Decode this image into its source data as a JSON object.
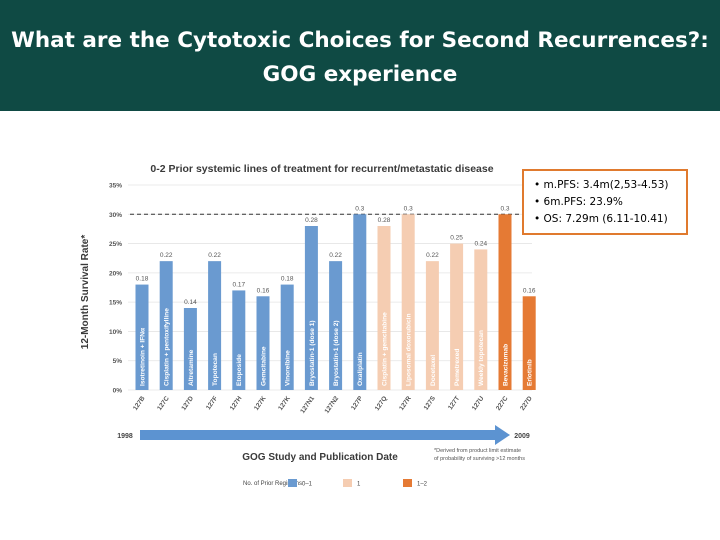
{
  "slide": {
    "title": "What are the Cytotoxic Choices  for Second Recurrences?:\nGOG experience"
  },
  "callout": {
    "lines": [
      "• m.PFS: 3.4m(2,53-4.53)",
      "• 6m.PFS: 23.9%",
      "• OS:  7.29m (6.11-10.41)"
    ]
  },
  "colors": {
    "banner": "#0f4a44",
    "regimen_0_1": "#6a9ad0",
    "regimen_1": "#f5cdb2",
    "regimen_1_2": "#e57a34",
    "timeline_arrow": "#5c93d1",
    "callout_border": "#e07a2e"
  },
  "chart_data": {
    "type": "bar",
    "title": "0-2 Prior systemic lines of treatment for recurrent/metastatic disease",
    "ylabel": "12-Month Survival Rate*",
    "xlabel": "GOG Study and Publication Date",
    "ylim": [
      0,
      0.35
    ],
    "yticks": [
      "0%",
      "5%",
      "10%",
      "15%",
      "20%",
      "25%",
      "30%",
      "35%"
    ],
    "reference_line": 0.3,
    "categories": [
      "127B",
      "127C",
      "127D",
      "127F",
      "127H",
      "127K",
      "127K",
      "127N1",
      "127N2",
      "127P",
      "127Q",
      "127R",
      "127S",
      "127T",
      "127U",
      "227C",
      "227D"
    ],
    "drugs": [
      "Isotretinoin + IFNα",
      "Cisplatin + pentoxifylline",
      "Altretamine",
      "Topotecan",
      "Etoposide",
      "Gemcitabine",
      "Vinorelbine",
      "Bryostatin-1 (dose 1)",
      "Bryostatin-1 (dose 2)",
      "Oxaliplatin",
      "Cisplatin + gemcitabine",
      "Liposomal doxorubicin",
      "Docetaxel",
      "Pemetrexed",
      "Weekly topotecan",
      "Bevacizumab",
      "Erlotinib"
    ],
    "values": [
      0.18,
      0.22,
      0.14,
      0.22,
      0.17,
      0.16,
      0.18,
      0.28,
      0.22,
      0.3,
      0.28,
      0.3,
      0.22,
      0.25,
      0.24,
      0.3,
      0.16
    ],
    "value_labels": [
      "0.18",
      "0.22",
      "0.14",
      "0.22",
      "0.17",
      "0.16",
      "0.18",
      "0.28",
      "0.22",
      "0.3",
      "0.28",
      "0.3",
      "0.22",
      "0.25",
      "0.24",
      "0.3",
      "0.16"
    ],
    "prior_regimens": [
      "0-1",
      "0-1",
      "0-1",
      "0-1",
      "0-1",
      "0-1",
      "0-1",
      "0-1",
      "0-1",
      "0-1",
      "1",
      "1",
      "1",
      "1",
      "1",
      "1-2",
      "1-2"
    ],
    "timeline": {
      "start": "1998",
      "end": "2009"
    },
    "footnote": "*Derived from product limit estimate of probability of surviving >12 months",
    "legend": {
      "title": "No. of Prior Regimens:",
      "entries": [
        {
          "label": "0–1",
          "key": "0-1"
        },
        {
          "label": "1",
          "key": "1"
        },
        {
          "label": "1–2",
          "key": "1-2"
        }
      ]
    }
  }
}
